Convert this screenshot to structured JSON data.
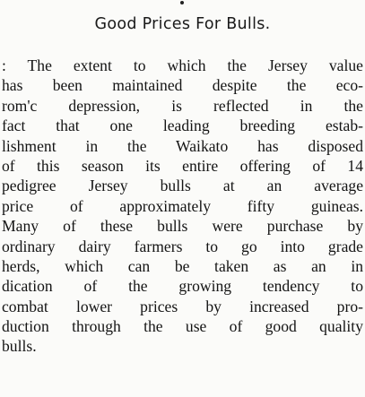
{
  "article": {
    "title": "Good Prices For Bulls.",
    "lines": [
      ": The extent to which the Jersey value",
      "has been maintained despite the eco-",
      "rom'c depression, is reflected in the",
      "fact that one leading breeding estab-",
      "lishment in the Waikato has disposed",
      "of this season its entire offering of 14",
      "pedigree Jersey bulls at an average",
      "price of approximately fifty guineas.",
      "Many of these bulls were purchase by",
      "ordinary dairy farmers to go into grade",
      "herds, which can be taken as an in",
      "dication of the growing tendency to",
      "combat lower prices by increased pro-",
      "duction through the use of good quality",
      "bulls."
    ]
  }
}
